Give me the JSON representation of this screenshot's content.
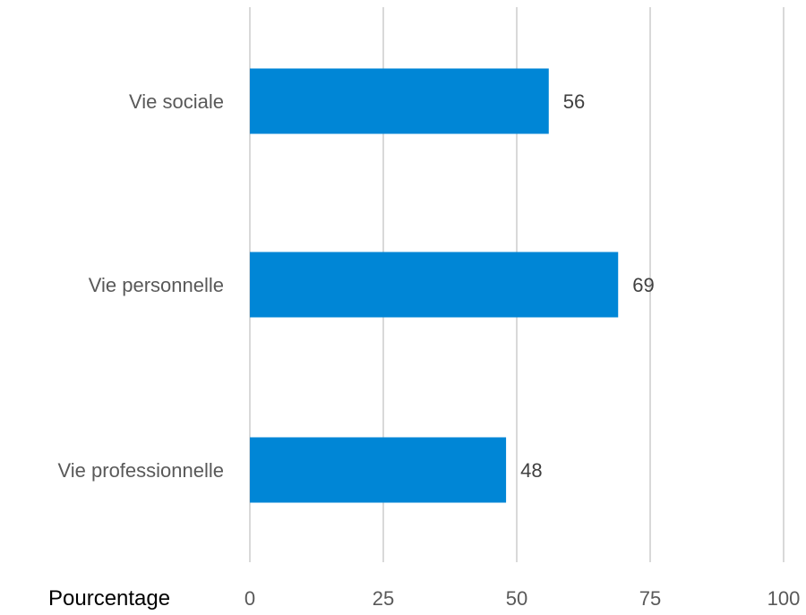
{
  "chart_data": {
    "type": "bar",
    "orientation": "horizontal",
    "categories": [
      "Vie sociale",
      "Vie personnelle",
      "Vie professionnelle"
    ],
    "values": [
      56,
      69,
      48
    ],
    "data_labels": [
      "56",
      "69",
      "48"
    ],
    "xlabel": "Pourcentage",
    "xlim": [
      0,
      100
    ],
    "xticks": [
      "0",
      "25",
      "50",
      "75",
      "100"
    ],
    "grid": true,
    "legend": "none",
    "colors": {
      "bar": "#0086d6",
      "grid": "#d9d9d9",
      "label": "#595959",
      "value_label": "#404040"
    }
  }
}
